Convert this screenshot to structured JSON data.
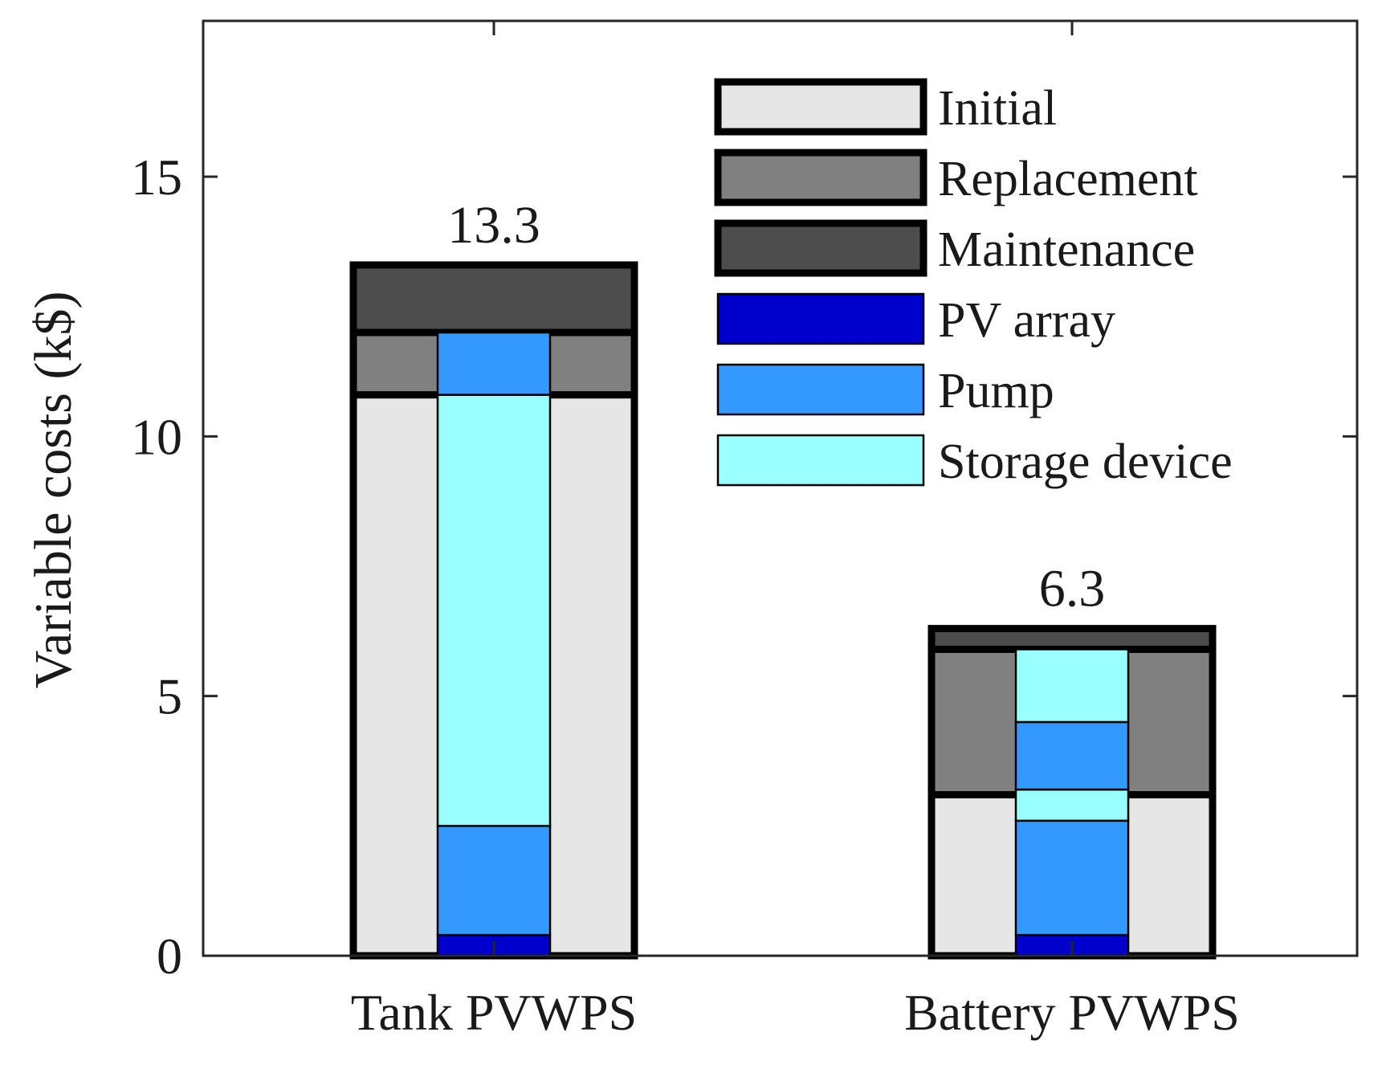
{
  "chart_data": {
    "type": "bar",
    "subtype": "stacked-grouped",
    "ylabel": "Variable costs (k$)",
    "xlabel": "",
    "ylim": [
      0,
      18
    ],
    "yticks": [
      0,
      5,
      10,
      15
    ],
    "categories": [
      "Tank PVWPS",
      "Battery PVWPS"
    ],
    "totals": [
      "13.3",
      "6.3"
    ],
    "cost_type_stack": [
      {
        "name": "Initial",
        "color": "#e6e6e6",
        "values": [
          10.8,
          3.1
        ]
      },
      {
        "name": "Replacement",
        "color": "#808080",
        "values": [
          1.2,
          2.8
        ]
      },
      {
        "name": "Maintenance",
        "color": "#4d4d4d",
        "values": [
          1.3,
          0.4
        ]
      }
    ],
    "component_stacks": [
      [
        {
          "name": "PV array",
          "value": 0.4
        },
        {
          "name": "Pump",
          "value": 2.1
        },
        {
          "name": "Storage device",
          "value": 8.3
        },
        {
          "name": "Pump",
          "value": 1.2
        }
      ],
      [
        {
          "name": "PV array",
          "value": 0.4
        },
        {
          "name": "Pump",
          "value": 2.2
        },
        {
          "name": "Storage device",
          "value": 0.6
        },
        {
          "name": "Pump",
          "value": 1.3
        },
        {
          "name": "Storage device",
          "value": 1.4
        }
      ]
    ],
    "component_colors": {
      "PV array": "#0000cc",
      "Pump": "#3399ff",
      "Storage device": "#99ffff"
    },
    "legend": [
      {
        "label": "Initial",
        "color": "#e6e6e6"
      },
      {
        "label": "Replacement",
        "color": "#808080"
      },
      {
        "label": "Maintenance",
        "color": "#4d4d4d"
      },
      {
        "label": "PV array",
        "color": "#0000cc"
      },
      {
        "label": "Pump",
        "color": "#3399ff"
      },
      {
        "label": "Storage device",
        "color": "#99ffff"
      }
    ],
    "legend_position": "top-right"
  }
}
